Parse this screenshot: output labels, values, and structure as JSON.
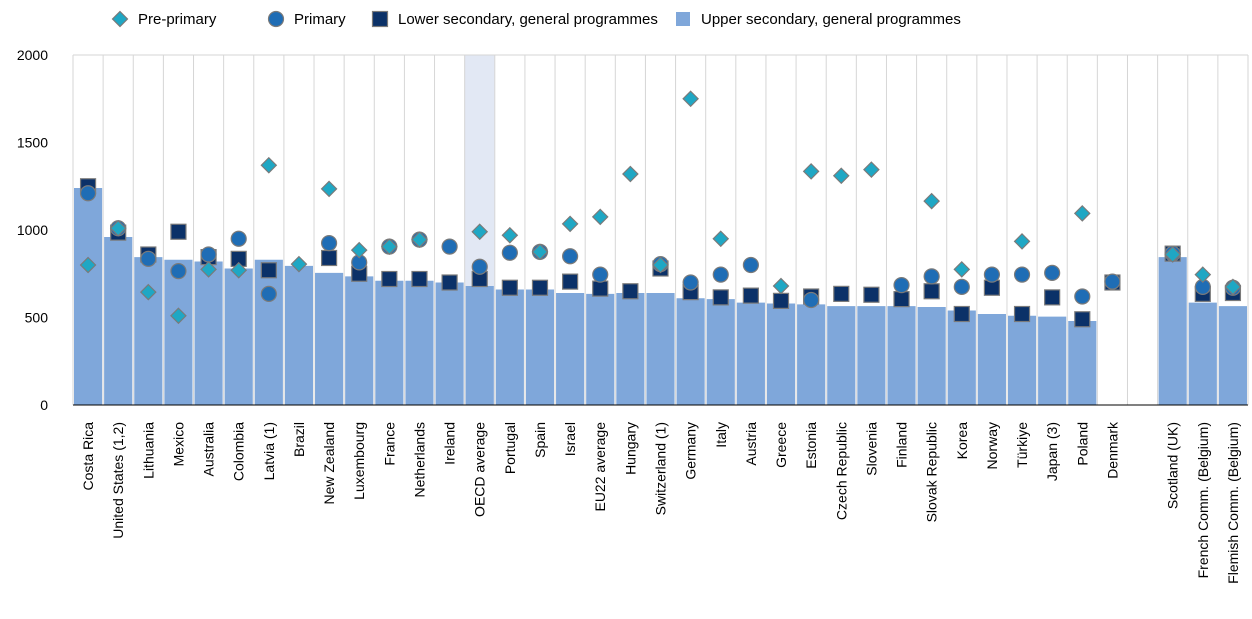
{
  "chart_data": {
    "type": "bar",
    "ylim": [
      0,
      2000
    ],
    "yticks": [
      0,
      500,
      1000,
      1500,
      2000
    ],
    "grid": true,
    "legend_position": "top",
    "highlight_category": "OECD average",
    "categories": [
      "Costa Rica",
      "United States (1,2)",
      "Lithuania",
      "Mexico",
      "Australia",
      "Colombia",
      "Latvia (1)",
      "Brazil",
      "New Zealand",
      "Luxembourg",
      "France",
      "Netherlands",
      "Ireland",
      "OECD average",
      "Portugal",
      "Spain",
      "Israel",
      "EU22 average",
      "Hungary",
      "Switzerland (1)",
      "Germany",
      "Italy",
      "Austria",
      "Greece",
      "Estonia",
      "Czech Republic",
      "Slovenia",
      "Finland",
      "Slovak Republic",
      "Korea",
      "Norway",
      "Türkiye",
      "Japan (3)",
      "Poland",
      "Denmark",
      "",
      "Scotland (UK)",
      "French Comm. (Belgium)",
      "Flemish Comm. (Belgium)"
    ],
    "series": [
      {
        "name": "Pre-primary",
        "marker": "diamond",
        "color": "#1FA7C4",
        "values": [
          800,
          1010,
          645,
          510,
          775,
          770,
          1370,
          805,
          1235,
          885,
          905,
          945,
          null,
          990,
          970,
          875,
          1035,
          1075,
          1320,
          800,
          1750,
          950,
          null,
          680,
          1335,
          1310,
          1345,
          null,
          1165,
          775,
          null,
          935,
          null,
          1095,
          null,
          null,
          860,
          745,
          675
        ]
      },
      {
        "name": "Primary",
        "marker": "circle",
        "color": "#1F6DB5",
        "values": [
          1210,
          1010,
          835,
          765,
          860,
          950,
          635,
          null,
          925,
          815,
          905,
          945,
          905,
          790,
          870,
          875,
          850,
          745,
          null,
          805,
          700,
          745,
          800,
          null,
          600,
          null,
          null,
          685,
          735,
          675,
          745,
          745,
          755,
          620,
          705,
          null,
          865,
          675,
          670
        ]
      },
      {
        "name": "Lower secondary, general programmes",
        "marker": "square",
        "color": "#0B3168",
        "values": [
          1250,
          985,
          860,
          990,
          845,
          835,
          770,
          null,
          840,
          750,
          720,
          720,
          700,
          720,
          670,
          670,
          705,
          665,
          650,
          780,
          645,
          615,
          625,
          595,
          620,
          635,
          630,
          605,
          650,
          520,
          670,
          520,
          615,
          490,
          700,
          null,
          865,
          635,
          640
        ]
      },
      {
        "name": "Upper secondary, general programmes",
        "marker": "bar",
        "color": "#7FA7DA",
        "values": [
          1240,
          960,
          845,
          830,
          820,
          780,
          830,
          795,
          755,
          735,
          710,
          710,
          700,
          680,
          660,
          660,
          640,
          635,
          640,
          640,
          610,
          605,
          585,
          580,
          575,
          565,
          565,
          565,
          560,
          540,
          520,
          510,
          505,
          480,
          null,
          null,
          845,
          585,
          565
        ]
      }
    ]
  }
}
